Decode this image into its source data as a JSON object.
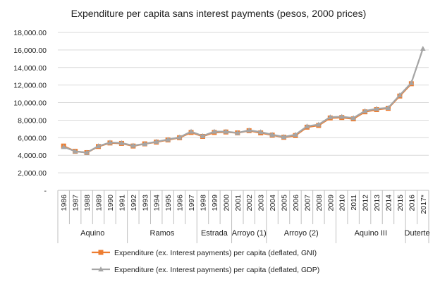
{
  "chart_data": {
    "type": "line",
    "title": "Expenditure per capita sans interest payments (pesos, 2000 prices)",
    "x": [
      "1986",
      "1987",
      "1988",
      "1989",
      "1990",
      "1991",
      "1992",
      "1993",
      "1994",
      "1995",
      "1996",
      "1997",
      "1998",
      "1999",
      "2000",
      "2001",
      "2002",
      "2003",
      "2004",
      "2005",
      "2006",
      "2007",
      "2008",
      "2009",
      "2010",
      "2011",
      "2012",
      "2013",
      "2014",
      "2015",
      "2016",
      "2017*"
    ],
    "y_tick_labels": [
      "-",
      "2,000.00",
      "4,000.00",
      "6,000.00",
      "8,000.00",
      "10,000.00",
      "12,000.00",
      "14,000.00",
      "16,000.00",
      "18,000.00"
    ],
    "ylim": [
      0,
      18000
    ],
    "y_step": 2000,
    "grid": true,
    "legend_position": "bottom",
    "groups": [
      {
        "label": "Aquino",
        "from": "1986",
        "to": "1991"
      },
      {
        "label": "Ramos",
        "from": "1992",
        "to": "1997"
      },
      {
        "label": "Estrada",
        "from": "1998",
        "to": "2000"
      },
      {
        "label": "Arroyo (1)",
        "from": "2001",
        "to": "2003"
      },
      {
        "label": "Arroyo (2)",
        "from": "2004",
        "to": "2009"
      },
      {
        "label": "Aquino III",
        "from": "2010",
        "to": "2015"
      },
      {
        "label": "Duterte",
        "from": "2016",
        "to": "2017*"
      }
    ],
    "series": [
      {
        "name": "Expenditure (ex. Interest payments) per capita (deflated, GNI)",
        "color": "#ed7d31",
        "marker": "square",
        "values": [
          5050,
          4450,
          4300,
          5000,
          5400,
          5350,
          5050,
          5300,
          5500,
          5750,
          6000,
          6600,
          6150,
          6600,
          6650,
          6550,
          6800,
          6550,
          6300,
          6050,
          6250,
          7200,
          7400,
          8250,
          8300,
          8150,
          8950,
          9200,
          9350,
          10750,
          12150,
          null
        ]
      },
      {
        "name": "Expenditure (ex. Interest payments) per capita (deflated, GDP)",
        "color": "#a5a5a5",
        "marker": "triangle",
        "values": [
          4950,
          4450,
          4300,
          5050,
          5450,
          5400,
          5100,
          5300,
          5550,
          5800,
          6050,
          6700,
          6200,
          6700,
          6700,
          6550,
          6850,
          6650,
          6350,
          6100,
          6350,
          7300,
          7500,
          8350,
          8400,
          8250,
          9050,
          9300,
          9400,
          10850,
          12250,
          16150
        ]
      }
    ]
  }
}
